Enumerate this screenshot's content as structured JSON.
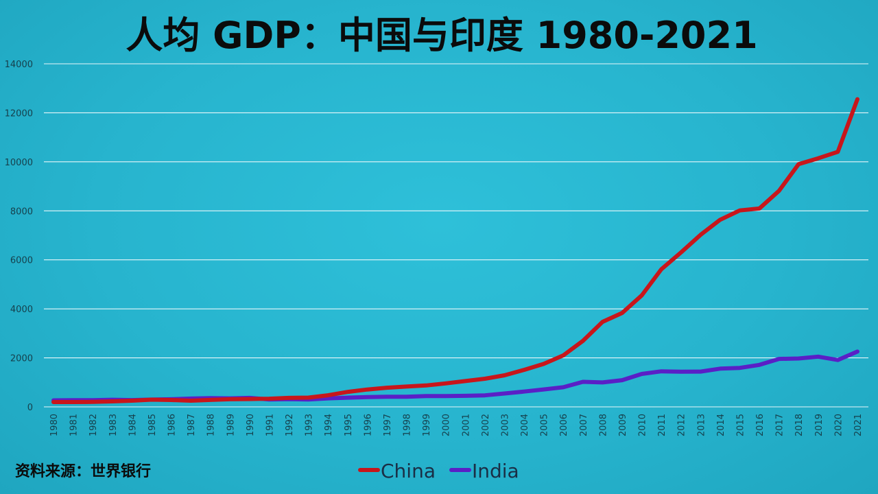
{
  "source_note": "资料来源：世界银行",
  "colors": {
    "China": "#c8161b",
    "India": "#5a1fc6",
    "grid": "#e9f7fa"
  },
  "chart_data": {
    "type": "line",
    "title": "人均 GDP：中国与印度 1980-2021",
    "xlabel": "",
    "ylabel": "",
    "ylim": [
      0,
      14000
    ],
    "yticks": [
      0,
      2000,
      4000,
      6000,
      8000,
      10000,
      12000,
      14000
    ],
    "grid": true,
    "legend_position": "bottom-center",
    "x": [
      "1980",
      "1981",
      "1982",
      "1983",
      "1984",
      "1985",
      "1986",
      "1987",
      "1988",
      "1989",
      "1990",
      "1991",
      "1992",
      "1993",
      "1994",
      "1995",
      "1996",
      "1997",
      "1998",
      "1999",
      "2000",
      "2001",
      "2002",
      "2003",
      "2004",
      "2005",
      "2006",
      "2007",
      "2008",
      "2009",
      "2010",
      "2011",
      "2012",
      "2013",
      "2014",
      "2015",
      "2016",
      "2017",
      "2018",
      "2019",
      "2020",
      "2021"
    ],
    "series": [
      {
        "name": "China",
        "values": [
          195,
          197,
          203,
          225,
          251,
          294,
          281,
          252,
          284,
          310,
          318,
          333,
          366,
          377,
          473,
          610,
          709,
          782,
          829,
          873,
          959,
          1053,
          1149,
          1289,
          1509,
          1753,
          2099,
          2694,
          3468,
          3832,
          4550,
          5614,
          6301,
          7020,
          7636,
          8016,
          8094,
          8817,
          9905,
          10144,
          10409,
          12556
        ]
      },
      {
        "name": "India",
        "values": [
          267,
          271,
          275,
          292,
          277,
          297,
          311,
          340,
          355,
          346,
          368,
          303,
          317,
          301,
          346,
          374,
          400,
          415,
          413,
          442,
          443,
          452,
          471,
          546,
          624,
          710,
          802,
          1023,
          998,
          1090,
          1345,
          1450,
          1434,
          1438,
          1560,
          1590,
          1714,
          1958,
          1974,
          2050,
          1913,
          2257
        ]
      }
    ]
  }
}
